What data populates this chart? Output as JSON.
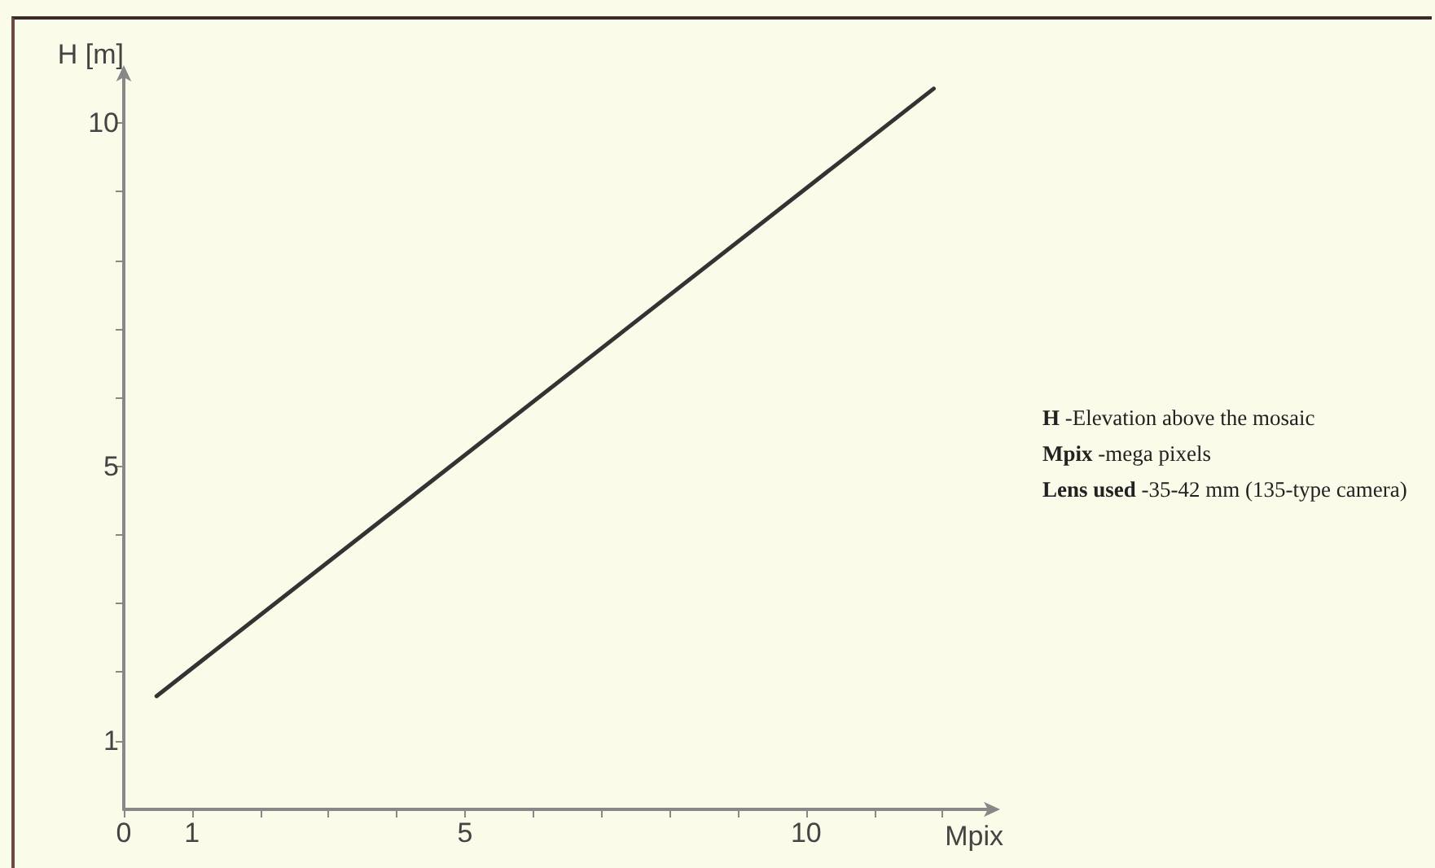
{
  "chart_data": {
    "type": "line",
    "xlabel": "Mpix",
    "ylabel": "H [m]",
    "x": [
      0.48,
      11.87
    ],
    "series": [
      {
        "color": "#333333",
        "values": [
          1.65,
          10.5
        ]
      }
    ],
    "xlim": [
      0,
      12.7
    ],
    "ylim": [
      0,
      10.7
    ],
    "xticks": [
      0,
      1,
      {
        "value": 2,
        "label": null
      },
      {
        "value": 3,
        "label": null
      },
      {
        "value": 4,
        "label": null
      },
      5,
      {
        "value": 6,
        "label": null
      },
      {
        "value": 7,
        "label": null
      },
      {
        "value": 8,
        "label": null
      },
      {
        "value": 9,
        "label": null
      },
      10,
      {
        "value": 11,
        "label": null
      },
      {
        "value": 12,
        "label": null
      }
    ],
    "yticks": [
      1,
      {
        "value": 2,
        "label": null
      },
      {
        "value": 3,
        "label": null
      },
      {
        "value": 4,
        "label": null
      },
      5,
      {
        "value": 6,
        "label": null
      },
      {
        "value": 7,
        "label": null
      },
      {
        "value": 8,
        "label": null
      },
      {
        "value": 9,
        "label": null
      },
      10
    ],
    "annotations": [
      "H -Elevation above the mosaic",
      "Mpix -mega pixels",
      "Lens used -35-42 mm (135-type camera)"
    ],
    "grid": false,
    "marker": "none",
    "line_style": "solid"
  }
}
